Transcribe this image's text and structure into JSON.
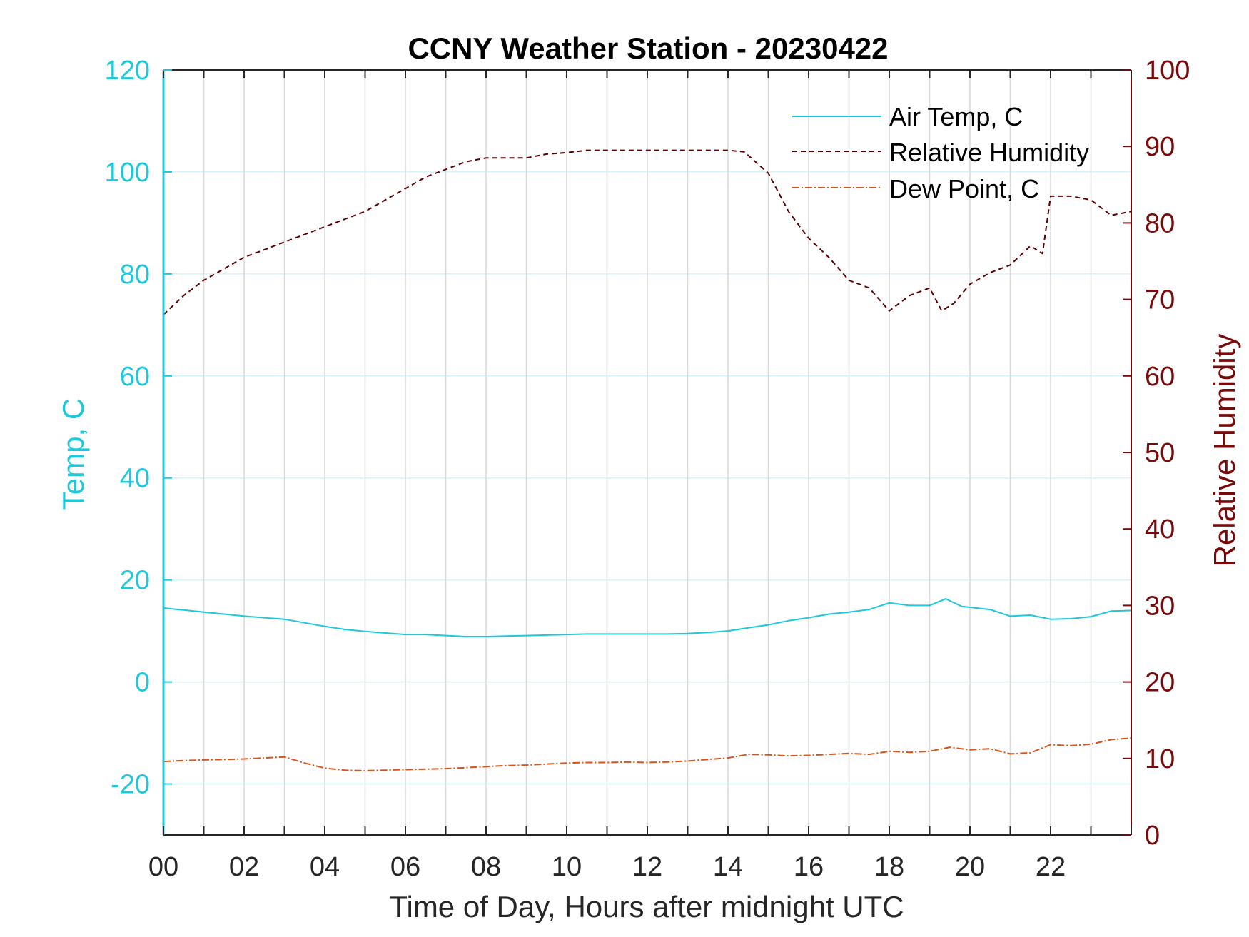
{
  "chart_data": {
    "type": "line",
    "title": "CCNY Weather Station - 20230422",
    "xlabel": "Time of Day, Hours after midnight UTC",
    "ylabel_left": "Temp, C",
    "ylabel_right": "Relative Humidity",
    "xlim": [
      0,
      24
    ],
    "ylim_left": [
      -30,
      120
    ],
    "ylim_right": [
      0,
      100
    ],
    "x_ticks": [
      0,
      2,
      4,
      6,
      8,
      10,
      12,
      14,
      16,
      18,
      20,
      22
    ],
    "x_tick_labels": [
      "00",
      "02",
      "04",
      "06",
      "08",
      "10",
      "12",
      "14",
      "16",
      "18",
      "20",
      "22"
    ],
    "y_ticks_left": [
      -20,
      0,
      20,
      40,
      60,
      80,
      100,
      120
    ],
    "y_tick_labels_left": [
      "-20",
      "0",
      "20",
      "40",
      "60",
      "80",
      "100",
      "120"
    ],
    "y_ticks_right": [
      0,
      10,
      20,
      30,
      40,
      50,
      60,
      70,
      80,
      90,
      100
    ],
    "y_tick_labels_right": [
      "0",
      "10",
      "20",
      "30",
      "40",
      "50",
      "60",
      "70",
      "80",
      "90",
      "100"
    ],
    "grid": true,
    "legend_position": "top-right",
    "colors": {
      "left_axis": "#1ec8dc",
      "right_axis": "#7a0a0a",
      "grid_vertical": "#d9d9d9",
      "grid_horizontal": "#d6f3f7"
    },
    "series": [
      {
        "name": "Air Temp, C",
        "axis": "left",
        "color": "#1ec8dc",
        "style": "solid",
        "x": [
          0,
          0.5,
          1,
          1.5,
          2,
          2.5,
          3,
          3.5,
          4,
          4.5,
          5,
          5.5,
          6,
          6.5,
          7,
          7.5,
          8,
          8.5,
          9,
          9.5,
          10,
          10.5,
          11,
          11.5,
          12,
          12.5,
          13,
          13.5,
          14,
          14.5,
          15,
          15.5,
          16,
          16.5,
          17,
          17.5,
          18,
          18.5,
          19,
          19.4,
          19.8,
          20.5,
          21,
          21.5,
          22,
          22.5,
          23,
          23.5,
          24
        ],
        "y": [
          14.5,
          14.1,
          13.7,
          13.3,
          12.9,
          12.6,
          12.3,
          11.6,
          10.9,
          10.3,
          9.9,
          9.6,
          9.3,
          9.3,
          9.1,
          8.9,
          8.9,
          9.0,
          9.1,
          9.2,
          9.3,
          9.4,
          9.4,
          9.4,
          9.4,
          9.4,
          9.5,
          9.7,
          10.0,
          10.6,
          11.2,
          12.0,
          12.6,
          13.3,
          13.7,
          14.2,
          15.5,
          15.0,
          15.0,
          16.3,
          14.8,
          14.2,
          12.9,
          13.1,
          12.3,
          12.4,
          12.8,
          13.9,
          14.0
        ]
      },
      {
        "name": "Relative Humidity",
        "axis": "right",
        "color": "#5a0000",
        "style": "dashed",
        "x": [
          0,
          0.5,
          1,
          1.5,
          2,
          2.5,
          3,
          3.5,
          4,
          4.5,
          5,
          5.5,
          6,
          6.5,
          7,
          7.5,
          8,
          8.5,
          9,
          9.5,
          10,
          10.5,
          11,
          11.5,
          12,
          12.5,
          13,
          13.5,
          14,
          14.4,
          15,
          15.5,
          16,
          16.5,
          17,
          17.5,
          18,
          18.5,
          19,
          19.3,
          19.6,
          20,
          20.5,
          21,
          21.5,
          21.8,
          22,
          22.5,
          23,
          23.5,
          24
        ],
        "y": [
          68,
          70.5,
          72.5,
          74,
          75.5,
          76.5,
          77.5,
          78.5,
          79.5,
          80.5,
          81.5,
          83,
          84.5,
          86,
          87,
          88,
          88.5,
          88.5,
          88.5,
          89,
          89.2,
          89.5,
          89.5,
          89.5,
          89.5,
          89.5,
          89.5,
          89.5,
          89.5,
          89.3,
          86.5,
          81.5,
          78,
          75.5,
          72.5,
          71.5,
          68.5,
          70.5,
          71.5,
          68.5,
          69.5,
          72,
          73.5,
          74.5,
          77,
          76,
          83.5,
          83.5,
          83,
          81,
          81.5
        ]
      },
      {
        "name": "Dew Point, C",
        "axis": "left",
        "color": "#d95319",
        "style": "dashdot",
        "x": [
          0,
          0.5,
          1,
          1.5,
          2,
          2.5,
          3,
          3.5,
          4,
          4.5,
          5,
          5.5,
          6,
          6.5,
          7,
          7.5,
          8,
          8.5,
          9,
          9.5,
          10,
          10.5,
          11,
          11.5,
          12,
          12.5,
          13,
          13.5,
          14,
          14.5,
          15,
          15.5,
          16,
          16.5,
          17,
          17.5,
          18,
          18.5,
          19,
          19.5,
          20,
          20.5,
          21,
          21.5,
          22,
          22.5,
          23,
          23.5,
          24
        ],
        "y": [
          -15.6,
          -15.4,
          -15.3,
          -15.2,
          -15.1,
          -14.9,
          -14.7,
          -15.9,
          -16.9,
          -17.3,
          -17.4,
          -17.3,
          -17.2,
          -17.1,
          -17.0,
          -16.8,
          -16.6,
          -16.4,
          -16.3,
          -16.1,
          -15.9,
          -15.8,
          -15.8,
          -15.7,
          -15.8,
          -15.7,
          -15.5,
          -15.2,
          -14.9,
          -14.2,
          -14.3,
          -14.5,
          -14.4,
          -14.2,
          -14.0,
          -14.2,
          -13.6,
          -13.8,
          -13.6,
          -12.8,
          -13.3,
          -13.1,
          -14.1,
          -13.9,
          -12.3,
          -12.5,
          -12.2,
          -11.3,
          -11.0
        ]
      }
    ]
  }
}
